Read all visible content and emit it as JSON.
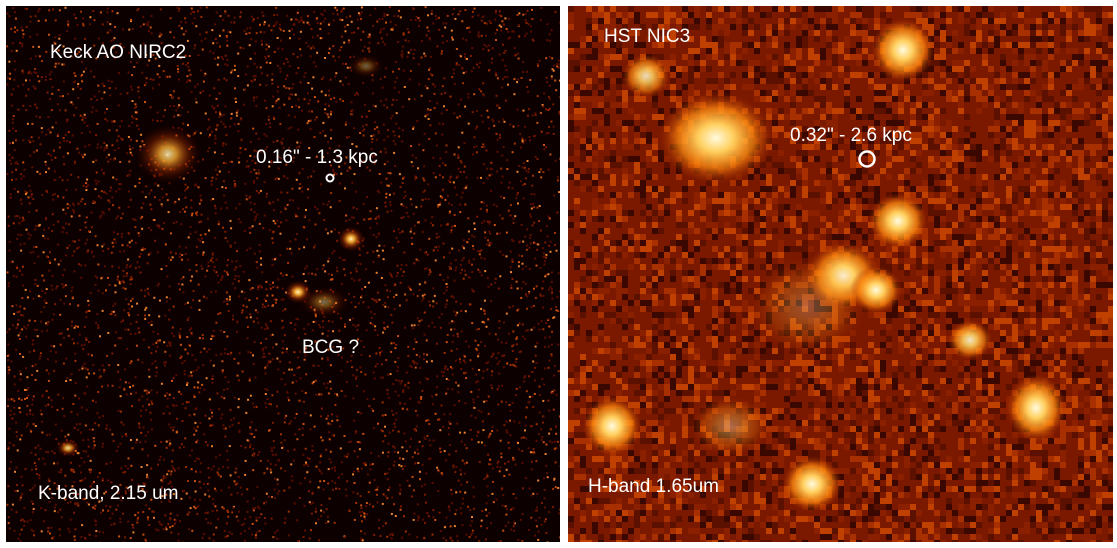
{
  "left_panel": {
    "instrument": "Keck AO NIRC2",
    "scale": "0.16\" - 1.3 kpc",
    "candidate": "BCG ?",
    "band": "K-band, 2.15 um"
  },
  "right_panel": {
    "instrument": "HST NIC3",
    "scale": "0.32\" - 2.6 kpc",
    "band": "H-band 1.65um"
  },
  "colors": {
    "left_background": "#0c0000",
    "right_background": "#7a1800",
    "divider": "#ffffff",
    "label_text": "#ffffff"
  }
}
